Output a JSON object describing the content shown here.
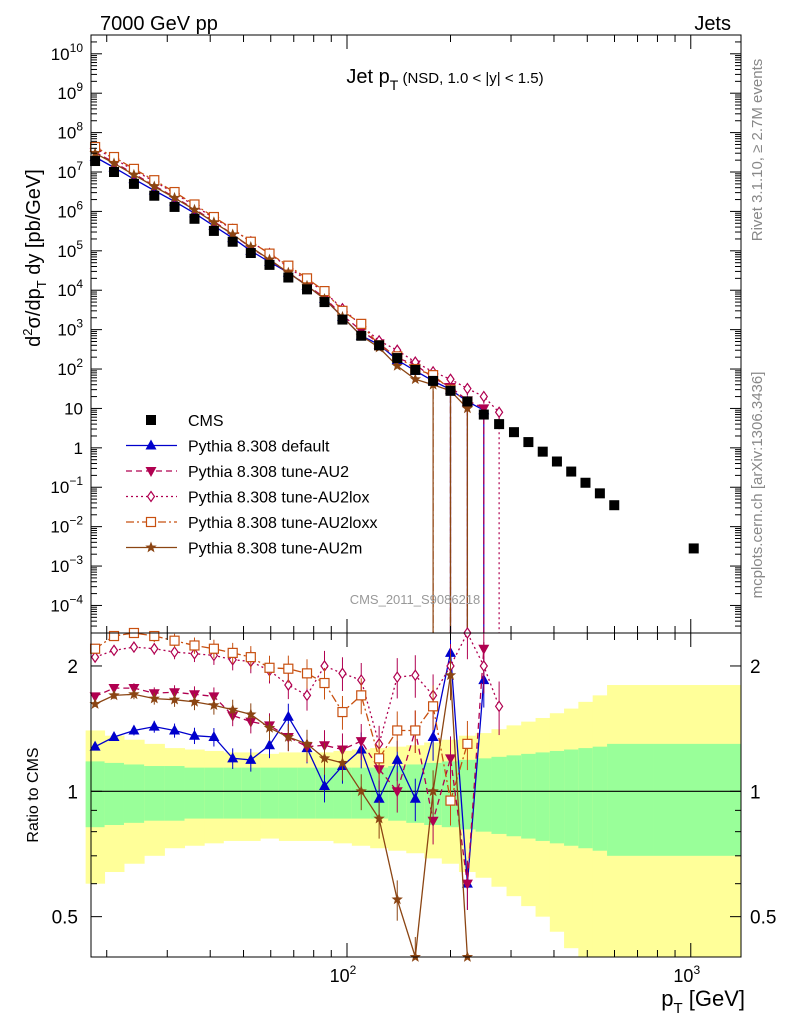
{
  "header": {
    "left": "7000 GeV pp",
    "right": "Jets"
  },
  "side_labels": {
    "rivet": "Rivet 3.1.10, ≥ 2.7M events",
    "mcplots": "mcplots.cern.ch [arXiv:1306.3436]"
  },
  "watermark": "CMS_2011_S9086218",
  "colors": {
    "cms": "#000000",
    "default": "#0000cc",
    "au2": "#b00050",
    "au2lox": "#b00050",
    "au2loxx": "#c85010",
    "au2m": "#8b4513",
    "band_yellow": "#ffff99",
    "band_green": "#99ff99"
  },
  "chart_data": [
    {
      "type": "scatter",
      "title": "Jet pT (NSD, 1.0 < |y| < 1.5)",
      "title_main": "Jet p",
      "title_sub": "T",
      "title_rest": " (NSD, 1.0 < |y| < 1.5)",
      "ylabel": "d²σ/dp_T dy [pb/GeV]",
      "ylabel_parts": [
        "d",
        "2",
        "σ/dp",
        "T",
        " dy [pb/GeV]"
      ],
      "x_scale": "log",
      "y_scale": "log",
      "xlim": [
        18,
        1400
      ],
      "ylim": [
        2e-05,
        30000000000
      ],
      "y_ticks": [
        {
          "v": 0.0001,
          "b": "10",
          "e": "−4"
        },
        {
          "v": 0.001,
          "b": "10",
          "e": "−3"
        },
        {
          "v": 0.01,
          "b": "10",
          "e": "−2"
        },
        {
          "v": 0.1,
          "b": "10",
          "e": "−1"
        },
        {
          "v": 1,
          "b": "1",
          "e": ""
        },
        {
          "v": 10,
          "b": "10",
          "e": ""
        },
        {
          "v": 100,
          "b": "10",
          "e": "2"
        },
        {
          "v": 1000,
          "b": "10",
          "e": "3"
        },
        {
          "v": 10000,
          "b": "10",
          "e": "4"
        },
        {
          "v": 100000,
          "b": "10",
          "e": "5"
        },
        {
          "v": 1000000,
          "b": "10",
          "e": "6"
        },
        {
          "v": 10000000,
          "b": "10",
          "e": "7"
        },
        {
          "v": 100000000,
          "b": "10",
          "e": "8"
        },
        {
          "v": 1000000000,
          "b": "10",
          "e": "9"
        },
        {
          "v": 10000000000,
          "b": "10",
          "e": "10"
        }
      ],
      "legend": {
        "placement": "lower-left",
        "entries": [
          {
            "label": "CMS",
            "key": "cms",
            "marker": "square-filled",
            "dash": "none"
          },
          {
            "label": "Pythia 8.308 default",
            "key": "default",
            "marker": "triangle-up-filled",
            "dash": "solid"
          },
          {
            "label": "Pythia 8.308 tune-AU2",
            "key": "au2",
            "marker": "triangle-down-filled",
            "dash": "dashed"
          },
          {
            "label": "Pythia 8.308 tune-AU2lox",
            "key": "au2lox",
            "marker": "diamond-open",
            "dash": "dotted"
          },
          {
            "label": "Pythia 8.308 tune-AU2loxx",
            "key": "au2loxx",
            "marker": "square-open",
            "dash": "dashdot"
          },
          {
            "label": "Pythia 8.308 tune-AU2m",
            "key": "au2m",
            "marker": "star",
            "dash": "solid"
          }
        ]
      },
      "cms": {
        "x": [
          18.5,
          21,
          24,
          27.5,
          31.5,
          36,
          41,
          46.5,
          52.5,
          59.5,
          67.5,
          76.5,
          86,
          97,
          110,
          124,
          140,
          158,
          178,
          200,
          224,
          250,
          277,
          306,
          337,
          371,
          408,
          449,
          494,
          544,
          599,
          1020
        ],
        "y": [
          19000000,
          10000000,
          5000000,
          2500000,
          1300000,
          650000,
          320000,
          170000,
          88000,
          44000,
          21000,
          10500,
          5000,
          1800,
          700,
          400,
          190,
          95,
          50,
          28,
          15,
          7,
          4,
          2.5,
          1.4,
          0.8,
          0.45,
          0.25,
          0.13,
          0.07,
          0.035,
          0.0028
        ]
      },
      "series": [
        {
          "key": "default",
          "name": "Pythia 8.308 default",
          "x": [
            18.5,
            21,
            24,
            27.5,
            31.5,
            36,
            41,
            46.5,
            52.5,
            59.5,
            67.5,
            76.5,
            86,
            97,
            110,
            124,
            140,
            158,
            178,
            200,
            224,
            250
          ],
          "y": [
            24000000,
            13000000,
            6600000,
            3400000,
            1800000,
            900000,
            430000,
            210000,
            100000,
            52000,
            28000,
            13000,
            6000,
            2100,
            700,
            420,
            170,
            90,
            50,
            30,
            15,
            9
          ]
        },
        {
          "key": "au2",
          "name": "Pythia 8.308 tune-AU2",
          "x": [
            18.5,
            21,
            24,
            27.5,
            31.5,
            36,
            41,
            46.5,
            52.5,
            59.5,
            67.5,
            76.5,
            86,
            97,
            110,
            124,
            140,
            158,
            178,
            200,
            224,
            250
          ],
          "y": [
            32000000,
            17500000,
            9000000,
            4500000,
            2300000,
            1150000,
            560000,
            260000,
            120000,
            60000,
            28000,
            13500,
            6500,
            2300,
            950,
            450,
            190,
            130,
            60,
            35,
            16,
            10
          ]
        },
        {
          "key": "au2lox",
          "name": "Pythia 8.308 tune-AU2lox",
          "x": [
            18.5,
            21,
            24,
            27.5,
            31.5,
            36,
            41,
            46.5,
            52.5,
            59.5,
            67.5,
            76.5,
            86,
            97,
            110,
            124,
            140,
            158,
            178,
            200,
            224,
            250,
            277
          ],
          "y": [
            40000000,
            22000000,
            11000000,
            5800000,
            2900000,
            1400000,
            680000,
            350000,
            170000,
            85000,
            38000,
            18000,
            9000,
            3400,
            1300,
            520,
            300,
            150,
            85,
            55,
            32,
            20,
            8
          ]
        },
        {
          "key": "au2loxx",
          "name": "Pythia 8.308 tune-AU2loxx",
          "x": [
            18.5,
            21,
            24,
            27.5,
            31.5,
            36,
            41,
            46.5,
            52.5,
            59.5,
            67.5,
            76.5,
            86,
            97,
            110,
            124,
            140,
            158,
            178,
            200,
            224
          ],
          "y": [
            43000000,
            24000000,
            12000000,
            6200000,
            3100000,
            1500000,
            720000,
            360000,
            170000,
            85000,
            42000,
            20000,
            9500,
            3000,
            1400,
            400,
            210,
            100,
            70,
            30,
            15
          ]
        },
        {
          "key": "au2m",
          "name": "Pythia 8.308 tune-AU2m",
          "x": [
            18.5,
            21,
            24,
            27.5,
            31.5,
            36,
            41,
            46.5,
            52.5,
            59.5,
            67.5,
            76.5,
            86,
            97,
            110,
            124,
            140,
            158,
            178,
            200,
            224
          ],
          "y": [
            30000000,
            16500000,
            8500000,
            4300000,
            2200000,
            1100000,
            530000,
            260000,
            125000,
            60000,
            28000,
            13000,
            6000,
            2100,
            700,
            350,
            120,
            55,
            40,
            28,
            10
          ]
        }
      ]
    },
    {
      "type": "line",
      "ylabel": "Ratio to CMS",
      "xlabel": "p_T [GeV]",
      "xlabel_main": "p",
      "xlabel_sub": "T",
      "xlabel_rest": " [GeV]",
      "x_scale": "log",
      "y_scale": "log",
      "xlim": [
        18,
        1400
      ],
      "ylim": [
        0.4,
        2.4
      ],
      "y_ticks": [
        {
          "v": 0.5,
          "label": "0.5"
        },
        {
          "v": 1,
          "label": "1"
        },
        {
          "v": 2,
          "label": "2"
        }
      ],
      "x_ticks": [
        {
          "v": 100,
          "b": "10",
          "e": "2"
        },
        {
          "v": 1000,
          "b": "10",
          "e": "3"
        }
      ],
      "reference_line": 1,
      "band_x": [
        18.5,
        21,
        24,
        27.5,
        31.5,
        36,
        41,
        46.5,
        52.5,
        59.5,
        67.5,
        76.5,
        86,
        97,
        110,
        124,
        140,
        158,
        178,
        200,
        224,
        250,
        277,
        306,
        337,
        371,
        408,
        449,
        494,
        544,
        599,
        1020
      ],
      "band_inner_half": [
        0.18,
        0.17,
        0.16,
        0.15,
        0.15,
        0.14,
        0.14,
        0.14,
        0.14,
        0.14,
        0.14,
        0.14,
        0.14,
        0.14,
        0.14,
        0.14,
        0.15,
        0.16,
        0.17,
        0.18,
        0.19,
        0.2,
        0.21,
        0.22,
        0.23,
        0.24,
        0.25,
        0.26,
        0.27,
        0.28,
        0.3,
        0.3
      ],
      "band_outer_half": [
        0.4,
        0.36,
        0.33,
        0.3,
        0.27,
        0.26,
        0.25,
        0.24,
        0.24,
        0.23,
        0.24,
        0.24,
        0.24,
        0.25,
        0.26,
        0.27,
        0.28,
        0.29,
        0.31,
        0.33,
        0.36,
        0.38,
        0.41,
        0.44,
        0.47,
        0.5,
        0.54,
        0.58,
        0.64,
        0.7,
        0.8,
        0.8
      ],
      "series": [
        {
          "key": "default",
          "name": "Pythia 8.308 default",
          "x": [
            18.5,
            21,
            24,
            27.5,
            31.5,
            36,
            41,
            46.5,
            52.5,
            59.5,
            67.5,
            76.5,
            86,
            97,
            110,
            124,
            140,
            158,
            178,
            200,
            224,
            250
          ],
          "y": [
            1.28,
            1.35,
            1.4,
            1.43,
            1.4,
            1.36,
            1.35,
            1.2,
            1.19,
            1.29,
            1.51,
            1.27,
            1.03,
            1.15,
            1.26,
            0.96,
            1.19,
            0.96,
            1.35,
            2.15,
            0.6,
            1.85
          ]
        },
        {
          "key": "au2",
          "name": "Pythia 8.308 tune-AU2",
          "x": [
            18.5,
            21,
            24,
            27.5,
            31.5,
            36,
            41,
            46.5,
            52.5,
            59.5,
            67.5,
            76.5,
            86,
            97,
            110,
            124,
            140,
            158,
            178,
            200,
            224,
            250
          ],
          "y": [
            1.69,
            1.77,
            1.77,
            1.72,
            1.73,
            1.71,
            1.69,
            1.52,
            1.47,
            1.44,
            1.35,
            1.28,
            1.29,
            1.26,
            1.32,
            1.13,
            1.0,
            1.4,
            0.85,
            1.2,
            0.6,
            2.2
          ]
        },
        {
          "key": "au2lox",
          "name": "Pythia 8.308 tune-AU2lox",
          "x": [
            18.5,
            21,
            24,
            27.5,
            31.5,
            36,
            41,
            46.5,
            52.5,
            59.5,
            67.5,
            76.5,
            86,
            97,
            110,
            124,
            140,
            158,
            178,
            200,
            224,
            250,
            277
          ],
          "y": [
            2.1,
            2.18,
            2.22,
            2.2,
            2.16,
            2.14,
            2.12,
            2.07,
            2.05,
            1.95,
            1.8,
            1.7,
            2.0,
            1.92,
            1.85,
            1.3,
            1.88,
            1.9,
            1.7,
            2.0,
            2.4,
            2.0,
            1.6
          ]
        },
        {
          "key": "au2loxx",
          "name": "Pythia 8.308 tune-AU2loxx",
          "x": [
            18.5,
            21,
            24,
            27.5,
            31.5,
            36,
            41,
            46.5,
            52.5,
            59.5,
            67.5,
            76.5,
            86,
            97,
            110,
            124,
            140,
            158,
            178,
            200,
            224
          ],
          "y": [
            2.2,
            2.36,
            2.42,
            2.36,
            2.3,
            2.24,
            2.2,
            2.15,
            2.1,
            1.98,
            1.97,
            1.92,
            1.82,
            1.55,
            1.7,
            1.2,
            1.4,
            1.4,
            1.6,
            0.95,
            1.3
          ]
        },
        {
          "key": "au2m",
          "name": "Pythia 8.308 tune-AU2m",
          "x": [
            18.5,
            21,
            24,
            27.5,
            31.5,
            36,
            41,
            46.5,
            52.5,
            59.5,
            67.5,
            76.5,
            86,
            97,
            110,
            124,
            140,
            158,
            178,
            200,
            224
          ],
          "y": [
            1.62,
            1.7,
            1.71,
            1.67,
            1.66,
            1.64,
            1.61,
            1.57,
            1.53,
            1.42,
            1.35,
            1.3,
            1.2,
            1.17,
            1.0,
            0.86,
            0.55,
            0.4,
            1.0,
            1.9,
            0.3
          ]
        }
      ]
    }
  ]
}
